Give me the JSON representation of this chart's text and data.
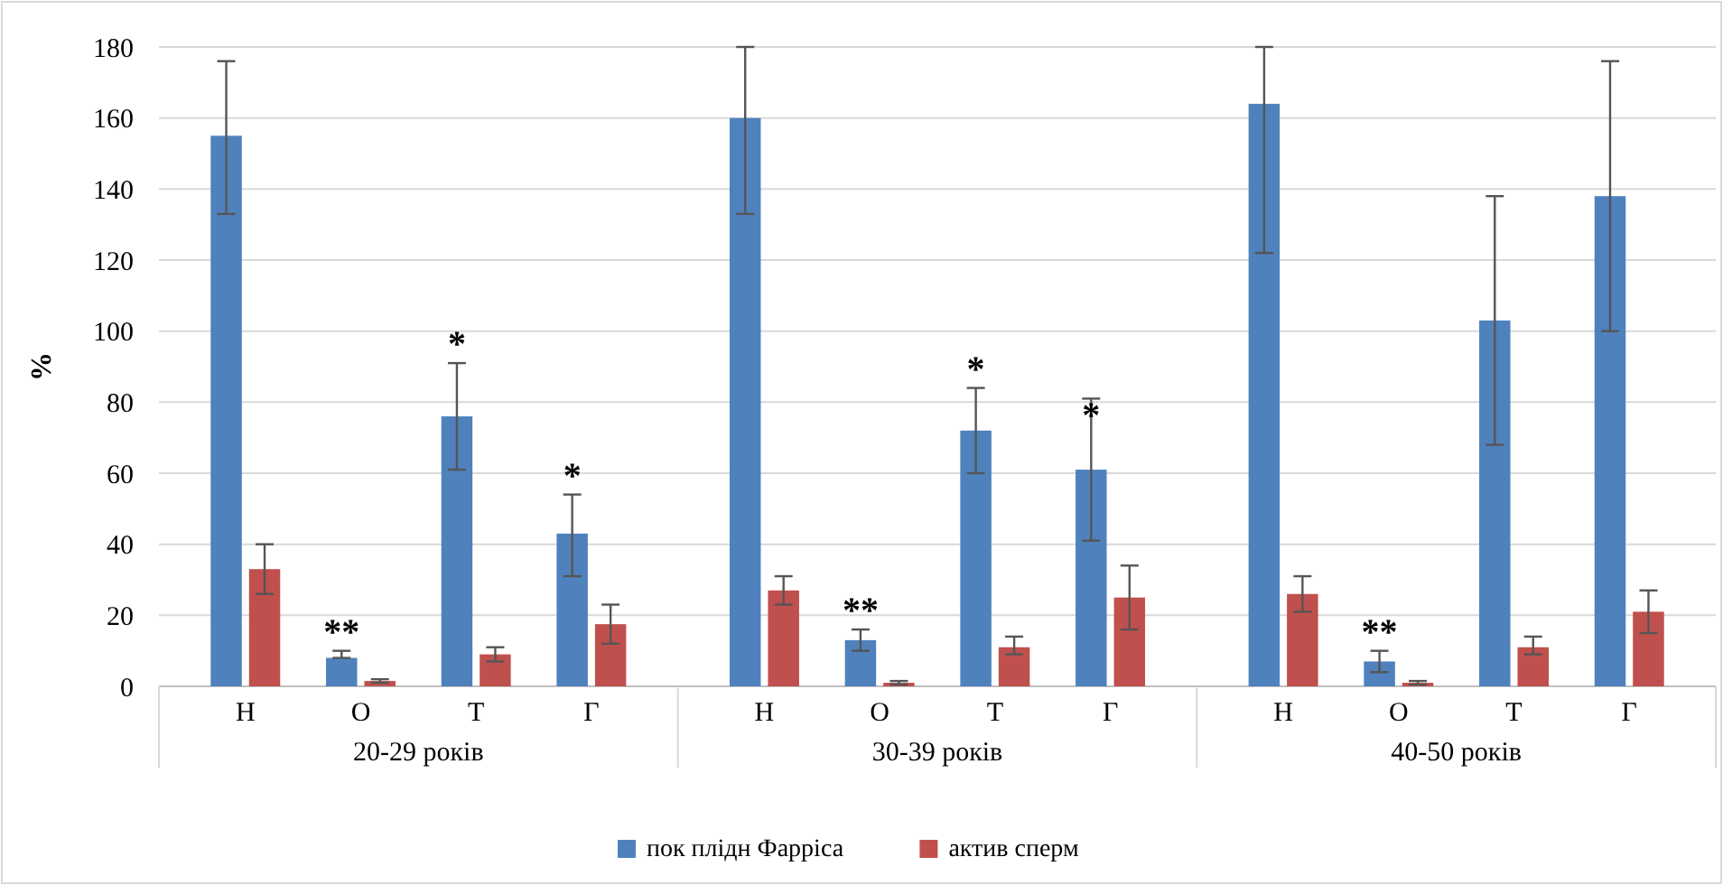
{
  "chart_data": {
    "type": "bar",
    "ylabel": "%",
    "categories": [
      "Н",
      "О",
      "Т",
      "Г",
      "Н",
      "О",
      "Т",
      "Г",
      "Н",
      "О",
      "Т",
      "Г"
    ],
    "series": [
      {
        "name": "пок плідн Фарріса",
        "color": "#4f81bd",
        "values": [
          155,
          8,
          76,
          43,
          160,
          13,
          72,
          61,
          164,
          7,
          103,
          138
        ],
        "errors": [
          [
            133,
            176
          ],
          [
            8,
            10
          ],
          [
            61,
            91
          ],
          [
            31,
            54
          ],
          [
            133,
            180
          ],
          [
            10,
            16
          ],
          [
            60,
            84
          ],
          [
            41,
            81
          ],
          [
            122,
            180
          ],
          [
            4,
            10
          ],
          [
            68,
            138
          ],
          [
            100,
            176
          ]
        ]
      },
      {
        "name": "актив сперм",
        "color": "#c0504d",
        "values": [
          33,
          1.5,
          9,
          17.5,
          27,
          1,
          11,
          25,
          26,
          1,
          11,
          21
        ],
        "errors": [
          [
            26,
            40
          ],
          [
            1,
            2
          ],
          [
            7,
            11
          ],
          [
            12,
            23
          ],
          [
            23,
            31
          ],
          [
            0.5,
            1.5
          ],
          [
            9,
            14
          ],
          [
            16,
            34
          ],
          [
            21,
            31
          ],
          [
            0.5,
            1.5
          ],
          [
            9,
            14
          ],
          [
            15,
            27
          ]
        ]
      }
    ],
    "ylim": [
      0,
      180
    ],
    "yticks": [
      0,
      20,
      40,
      60,
      80,
      100,
      120,
      140,
      160,
      180
    ],
    "grid": "y",
    "legend": "bottom",
    "annotations": [
      "20-29 років",
      "30-39 років",
      "40-50 років",
      "**",
      "*",
      "*",
      "**",
      "*",
      "*",
      "**"
    ]
  }
}
